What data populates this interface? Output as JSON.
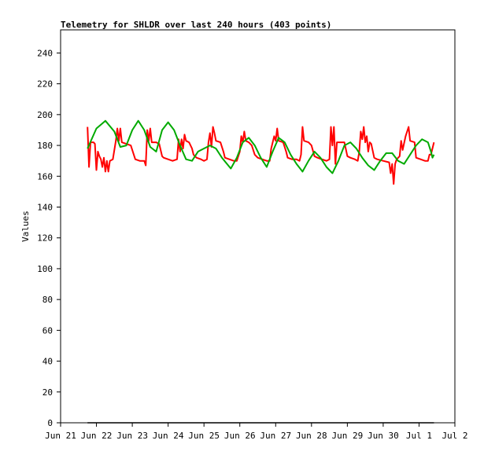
{
  "chart_data": {
    "type": "line",
    "title": "Telemetry for SHLDR over last 240 hours (403 points)",
    "xlabel": "",
    "ylabel": "Values",
    "ylim": [
      0,
      255
    ],
    "yticks": [
      0,
      20,
      40,
      60,
      80,
      100,
      120,
      140,
      160,
      180,
      200,
      220,
      240
    ],
    "xlim": [
      "2023-06-21",
      "2023-07-02"
    ],
    "xticks": [
      {
        "date": "2023-06-21",
        "label": "Jun 21"
      },
      {
        "date": "2023-06-22",
        "label": "Jun 22"
      },
      {
        "date": "2023-06-23",
        "label": "Jun 23"
      },
      {
        "date": "2023-06-24",
        "label": "Jun 24"
      },
      {
        "date": "2023-06-25",
        "label": "Jun 25"
      },
      {
        "date": "2023-06-26",
        "label": "Jun 26"
      },
      {
        "date": "2023-06-27",
        "label": "Jun 27"
      },
      {
        "date": "2023-06-28",
        "label": "Jun 28"
      },
      {
        "date": "2023-06-29",
        "label": "Jun 29"
      },
      {
        "date": "2023-06-30",
        "label": "Jun 30"
      },
      {
        "date": "2023-07-01",
        "label": "Jul 1"
      },
      {
        "date": "2023-07-02",
        "label": "Jul 2"
      }
    ],
    "grid": false,
    "legend": "none",
    "series": [
      {
        "color": "#ff0000",
        "points": [
          [
            "2023-06-21T18:00",
            192
          ],
          [
            "2023-06-21T19:00",
            166
          ],
          [
            "2023-06-21T20:00",
            182
          ],
          [
            "2023-06-21T22:00",
            182
          ],
          [
            "2023-06-21T23:00",
            181
          ],
          [
            "2023-06-22T00:00",
            164
          ],
          [
            "2023-06-22T01:00",
            176
          ],
          [
            "2023-06-22T02:00",
            173
          ],
          [
            "2023-06-22T03:00",
            171
          ],
          [
            "2023-06-22T04:00",
            166
          ],
          [
            "2023-06-22T05:00",
            172
          ],
          [
            "2023-06-22T06:00",
            163
          ],
          [
            "2023-06-22T07:00",
            170
          ],
          [
            "2023-06-22T08:00",
            163
          ],
          [
            "2023-06-22T09:00",
            170
          ],
          [
            "2023-06-22T11:00",
            171
          ],
          [
            "2023-06-22T13:00",
            183
          ],
          [
            "2023-06-22T14:00",
            191
          ],
          [
            "2023-06-22T15:00",
            183
          ],
          [
            "2023-06-22T16:00",
            191
          ],
          [
            "2023-06-22T17:00",
            182
          ],
          [
            "2023-06-22T20:00",
            181
          ],
          [
            "2023-06-22T23:00",
            180
          ],
          [
            "2023-06-23T01:00",
            174
          ],
          [
            "2023-06-23T02:00",
            171
          ],
          [
            "2023-06-23T05:00",
            170
          ],
          [
            "2023-06-23T08:00",
            170
          ],
          [
            "2023-06-23T09:00",
            167
          ],
          [
            "2023-06-23T10:00",
            190
          ],
          [
            "2023-06-23T11:00",
            183
          ],
          [
            "2023-06-23T12:00",
            191
          ],
          [
            "2023-06-23T13:00",
            182
          ],
          [
            "2023-06-23T16:00",
            182
          ],
          [
            "2023-06-23T18:00",
            181
          ],
          [
            "2023-06-23T20:00",
            173
          ],
          [
            "2023-06-23T21:00",
            172
          ],
          [
            "2023-06-24T00:00",
            171
          ],
          [
            "2023-06-24T03:00",
            170
          ],
          [
            "2023-06-24T06:00",
            171
          ],
          [
            "2023-06-24T07:00",
            184
          ],
          [
            "2023-06-24T08:00",
            176
          ],
          [
            "2023-06-24T09:00",
            184
          ],
          [
            "2023-06-24T10:00",
            178
          ],
          [
            "2023-06-24T11:00",
            187
          ],
          [
            "2023-06-24T12:00",
            183
          ],
          [
            "2023-06-24T14:00",
            182
          ],
          [
            "2023-06-24T16:00",
            178
          ],
          [
            "2023-06-24T17:00",
            174
          ],
          [
            "2023-06-24T19:00",
            172
          ],
          [
            "2023-06-24T22:00",
            171
          ],
          [
            "2023-06-25T00:00",
            170
          ],
          [
            "2023-06-25T02:00",
            171
          ],
          [
            "2023-06-25T03:00",
            182
          ],
          [
            "2023-06-25T04:00",
            188
          ],
          [
            "2023-06-25T05:00",
            179
          ],
          [
            "2023-06-25T06:00",
            192
          ],
          [
            "2023-06-25T07:00",
            188
          ],
          [
            "2023-06-25T08:00",
            183
          ],
          [
            "2023-06-25T11:00",
            182
          ],
          [
            "2023-06-25T13:00",
            176
          ],
          [
            "2023-06-25T14:00",
            172
          ],
          [
            "2023-06-25T17:00",
            171
          ],
          [
            "2023-06-25T20:00",
            170
          ],
          [
            "2023-06-25T22:00",
            170
          ],
          [
            "2023-06-26T00:00",
            176
          ],
          [
            "2023-06-26T01:00",
            186
          ],
          [
            "2023-06-26T02:00",
            182
          ],
          [
            "2023-06-26T03:00",
            189
          ],
          [
            "2023-06-26T04:00",
            183
          ],
          [
            "2023-06-26T06:00",
            182
          ],
          [
            "2023-06-26T08:00",
            180
          ],
          [
            "2023-06-26T10:00",
            174
          ],
          [
            "2023-06-26T12:00",
            172
          ],
          [
            "2023-06-26T15:00",
            171
          ],
          [
            "2023-06-26T18:00",
            170
          ],
          [
            "2023-06-26T20:00",
            170
          ],
          [
            "2023-06-26T21:00",
            178
          ],
          [
            "2023-06-26T23:00",
            186
          ],
          [
            "2023-06-27T00:00",
            183
          ],
          [
            "2023-06-27T01:00",
            191
          ],
          [
            "2023-06-27T02:00",
            183
          ],
          [
            "2023-06-27T05:00",
            182
          ],
          [
            "2023-06-27T07:00",
            176
          ],
          [
            "2023-06-27T08:00",
            172
          ],
          [
            "2023-06-27T11:00",
            171
          ],
          [
            "2023-06-27T14:00",
            171
          ],
          [
            "2023-06-27T16:00",
            170
          ],
          [
            "2023-06-27T17:00",
            174
          ],
          [
            "2023-06-27T18:00",
            192
          ],
          [
            "2023-06-27T19:00",
            183
          ],
          [
            "2023-06-27T22:00",
            182
          ],
          [
            "2023-06-28T00:00",
            180
          ],
          [
            "2023-06-28T02:00",
            173
          ],
          [
            "2023-06-28T04:00",
            172
          ],
          [
            "2023-06-28T07:00",
            171
          ],
          [
            "2023-06-28T10:00",
            170
          ],
          [
            "2023-06-28T12:00",
            171
          ],
          [
            "2023-06-28T13:00",
            192
          ],
          [
            "2023-06-28T14:00",
            180
          ],
          [
            "2023-06-28T15:00",
            192
          ],
          [
            "2023-06-28T16:00",
            168
          ],
          [
            "2023-06-28T17:00",
            182
          ],
          [
            "2023-06-28T20:00",
            182
          ],
          [
            "2023-06-28T22:00",
            182
          ],
          [
            "2023-06-29T00:00",
            173
          ],
          [
            "2023-06-29T02:00",
            172
          ],
          [
            "2023-06-29T05:00",
            171
          ],
          [
            "2023-06-29T07:00",
            170
          ],
          [
            "2023-06-29T08:00",
            176
          ],
          [
            "2023-06-29T09:00",
            189
          ],
          [
            "2023-06-29T10:00",
            184
          ],
          [
            "2023-06-29T11:00",
            192
          ],
          [
            "2023-06-29T12:00",
            182
          ],
          [
            "2023-06-29T13:00",
            186
          ],
          [
            "2023-06-29T14:00",
            176
          ],
          [
            "2023-06-29T15:00",
            182
          ],
          [
            "2023-06-29T16:00",
            181
          ],
          [
            "2023-06-29T18:00",
            172
          ],
          [
            "2023-06-29T20:00",
            171
          ],
          [
            "2023-06-30T00:00",
            170
          ],
          [
            "2023-06-30T04:00",
            169
          ],
          [
            "2023-06-30T05:00",
            162
          ],
          [
            "2023-06-30T06:00",
            168
          ],
          [
            "2023-06-30T07:00",
            155
          ],
          [
            "2023-06-30T08:00",
            168
          ],
          [
            "2023-06-30T09:00",
            171
          ],
          [
            "2023-06-30T11:00",
            173
          ],
          [
            "2023-06-30T12:00",
            183
          ],
          [
            "2023-06-30T13:00",
            177
          ],
          [
            "2023-06-30T15:00",
            186
          ],
          [
            "2023-06-30T17:00",
            192
          ],
          [
            "2023-06-30T18:00",
            183
          ],
          [
            "2023-06-30T21:00",
            182
          ],
          [
            "2023-06-30T22:00",
            172
          ],
          [
            "2023-07-01T01:00",
            171
          ],
          [
            "2023-07-01T04:00",
            170
          ],
          [
            "2023-07-01T06:00",
            170
          ],
          [
            "2023-07-01T07:00",
            174
          ],
          [
            "2023-07-01T08:00",
            174
          ],
          [
            "2023-07-01T09:00",
            178
          ],
          [
            "2023-07-01T10:00",
            182
          ]
        ]
      },
      {
        "color": "#00aa00",
        "points": [
          [
            "2023-06-21T18:00",
            178
          ],
          [
            "2023-06-22T00:00",
            191
          ],
          [
            "2023-06-22T06:00",
            196
          ],
          [
            "2023-06-22T12:00",
            189
          ],
          [
            "2023-06-22T16:00",
            179
          ],
          [
            "2023-06-22T20:00",
            180
          ],
          [
            "2023-06-23T00:00",
            190
          ],
          [
            "2023-06-23T04:00",
            196
          ],
          [
            "2023-06-23T08:00",
            190
          ],
          [
            "2023-06-23T12:00",
            179
          ],
          [
            "2023-06-23T16:00",
            176
          ],
          [
            "2023-06-23T20:00",
            190
          ],
          [
            "2023-06-24T00:00",
            195
          ],
          [
            "2023-06-24T04:00",
            190
          ],
          [
            "2023-06-24T08:00",
            180
          ],
          [
            "2023-06-24T12:00",
            171
          ],
          [
            "2023-06-24T16:00",
            170
          ],
          [
            "2023-06-24T20:00",
            176
          ],
          [
            "2023-06-25T00:00",
            178
          ],
          [
            "2023-06-25T04:00",
            180
          ],
          [
            "2023-06-25T08:00",
            178
          ],
          [
            "2023-06-25T12:00",
            172
          ],
          [
            "2023-06-25T18:00",
            165
          ],
          [
            "2023-06-25T22:00",
            172
          ],
          [
            "2023-06-26T02:00",
            182
          ],
          [
            "2023-06-26T06:00",
            185
          ],
          [
            "2023-06-26T10:00",
            180
          ],
          [
            "2023-06-26T14:00",
            172
          ],
          [
            "2023-06-26T18:00",
            166
          ],
          [
            "2023-06-26T22:00",
            176
          ],
          [
            "2023-06-27T02:00",
            185
          ],
          [
            "2023-06-27T06:00",
            182
          ],
          [
            "2023-06-27T10:00",
            174
          ],
          [
            "2023-06-27T14:00",
            168
          ],
          [
            "2023-06-27T18:00",
            163
          ],
          [
            "2023-06-27T22:00",
            170
          ],
          [
            "2023-06-28T02:00",
            176
          ],
          [
            "2023-06-28T06:00",
            172
          ],
          [
            "2023-06-28T10:00",
            166
          ],
          [
            "2023-06-28T14:00",
            162
          ],
          [
            "2023-06-28T18:00",
            170
          ],
          [
            "2023-06-28T22:00",
            180
          ],
          [
            "2023-06-29T02:00",
            182
          ],
          [
            "2023-06-29T06:00",
            178
          ],
          [
            "2023-06-29T10:00",
            172
          ],
          [
            "2023-06-29T14:00",
            167
          ],
          [
            "2023-06-29T18:00",
            164
          ],
          [
            "2023-06-29T22:00",
            170
          ],
          [
            "2023-06-30T02:00",
            175
          ],
          [
            "2023-06-30T06:00",
            175
          ],
          [
            "2023-06-30T10:00",
            170
          ],
          [
            "2023-06-30T14:00",
            168
          ],
          [
            "2023-06-30T18:00",
            174
          ],
          [
            "2023-06-30T22:00",
            180
          ],
          [
            "2023-07-01T02:00",
            184
          ],
          [
            "2023-07-01T06:00",
            182
          ],
          [
            "2023-07-01T08:00",
            176
          ],
          [
            "2023-07-01T09:00",
            172
          ],
          [
            "2023-07-01T10:00",
            174
          ]
        ]
      },
      {
        "color": "#000000",
        "points": [
          [
            "2023-06-21T18:00",
            0
          ],
          [
            "2023-07-01T10:00",
            0
          ]
        ]
      }
    ]
  }
}
